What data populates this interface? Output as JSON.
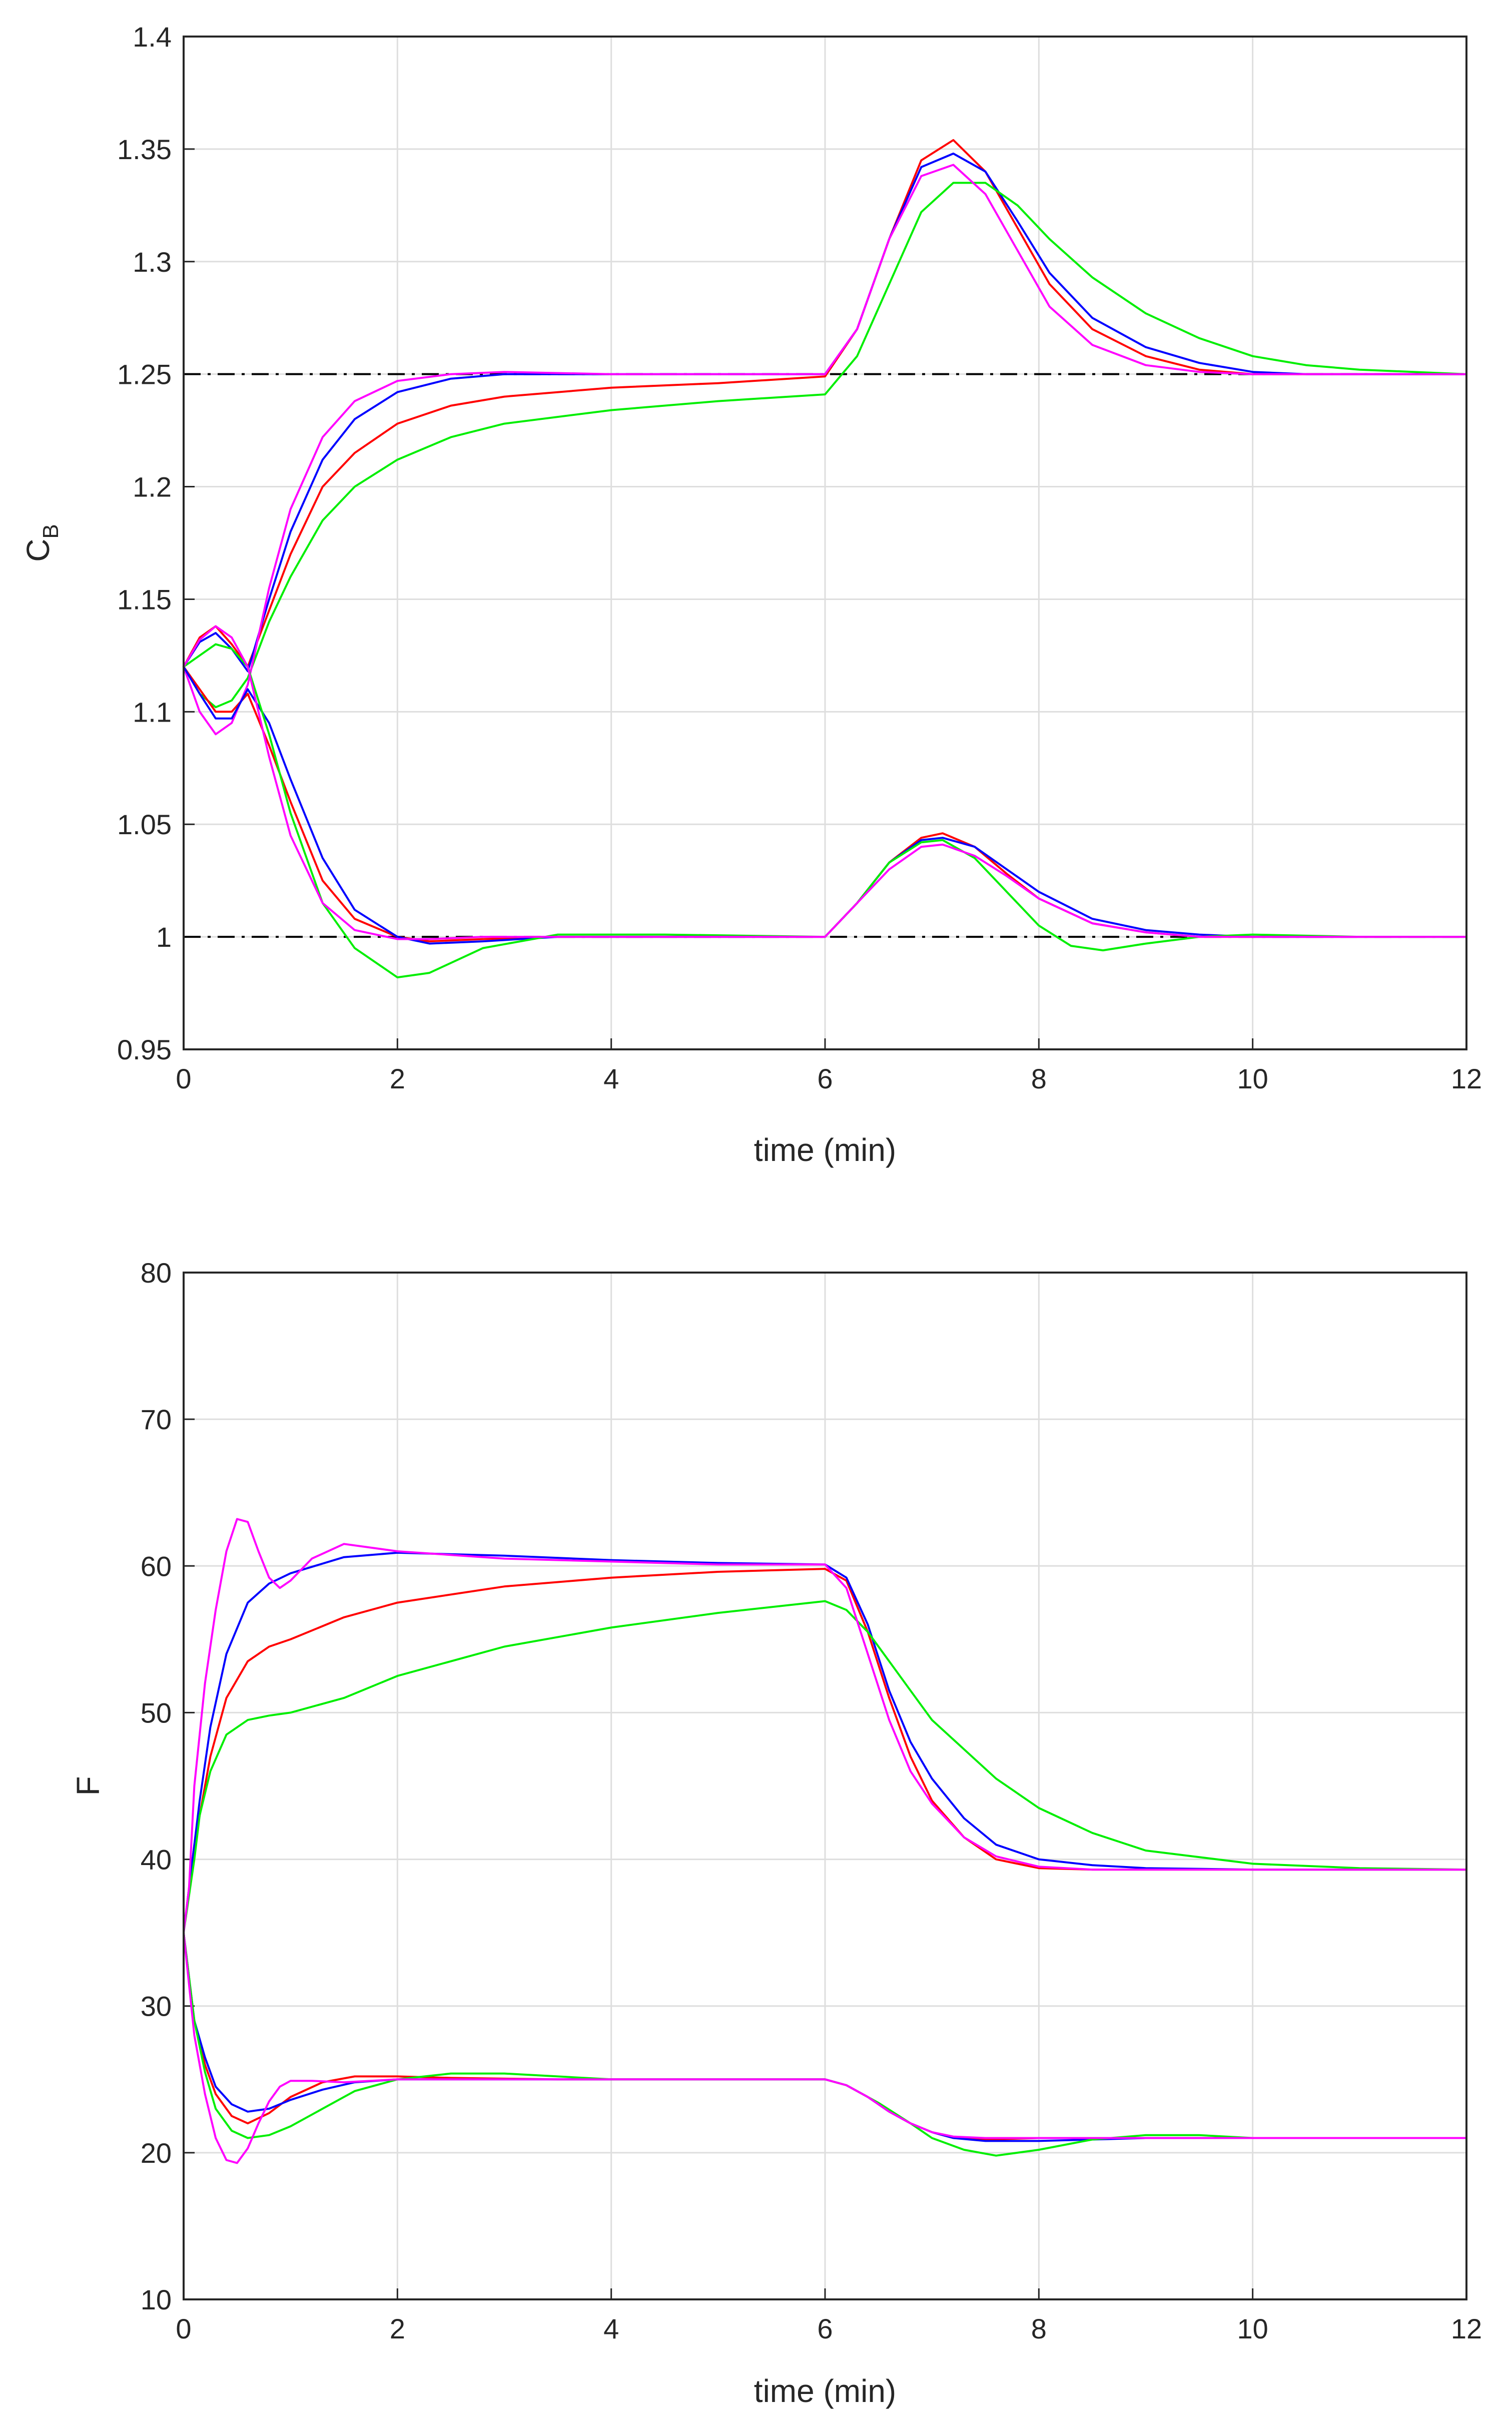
{
  "chart_data": [
    {
      "type": "line",
      "xlabel": "time (min)",
      "ylabel": "C",
      "ylabel_subscript": "B",
      "xlim": [
        0,
        12
      ],
      "ylim": [
        0.95,
        1.4
      ],
      "xticks": [
        0,
        2,
        4,
        6,
        8,
        10,
        12
      ],
      "yticks": [
        0.95,
        1,
        1.05,
        1.1,
        1.15,
        1.2,
        1.25,
        1.3,
        1.35,
        1.4
      ],
      "ytick_labels": [
        "0.95",
        "1",
        "1.05",
        "1.1",
        "1.15",
        "1.2",
        "1.25",
        "1.3",
        "1.35",
        "1.4"
      ],
      "grid": true,
      "references": [
        {
          "name": "setpoint-high",
          "y": 1.25,
          "style": "dash-dot",
          "color": "#000000"
        },
        {
          "name": "setpoint-low",
          "y": 1.0,
          "style": "dash-dot",
          "color": "#000000"
        }
      ],
      "series": [
        {
          "name": "red-upper",
          "color": "#ff0000",
          "x": [
            0,
            0.15,
            0.3,
            0.45,
            0.6,
            0.8,
            1.0,
            1.3,
            1.6,
            2.0,
            2.5,
            3.0,
            4.0,
            5.0,
            6.0,
            6.3,
            6.6,
            6.9,
            7.2,
            7.5,
            7.8,
            8.1,
            8.5,
            9.0,
            9.5,
            10.0,
            10.5,
            11.0,
            12.0
          ],
          "y": [
            1.12,
            1.133,
            1.138,
            1.13,
            1.12,
            1.145,
            1.17,
            1.2,
            1.215,
            1.228,
            1.236,
            1.24,
            1.244,
            1.246,
            1.249,
            1.27,
            1.31,
            1.345,
            1.354,
            1.34,
            1.315,
            1.29,
            1.27,
            1.258,
            1.252,
            1.25,
            1.25,
            1.25,
            1.25
          ]
        },
        {
          "name": "blue-upper",
          "color": "#0000ff",
          "x": [
            0,
            0.15,
            0.3,
            0.45,
            0.6,
            0.8,
            1.0,
            1.3,
            1.6,
            2.0,
            2.5,
            3.0,
            4.0,
            5.0,
            6.0,
            6.3,
            6.6,
            6.9,
            7.2,
            7.5,
            7.8,
            8.1,
            8.5,
            9.0,
            9.5,
            10.0,
            10.5,
            11.0,
            12.0
          ],
          "y": [
            1.12,
            1.131,
            1.135,
            1.128,
            1.118,
            1.15,
            1.18,
            1.212,
            1.23,
            1.242,
            1.248,
            1.25,
            1.25,
            1.25,
            1.25,
            1.27,
            1.31,
            1.342,
            1.348,
            1.34,
            1.318,
            1.295,
            1.275,
            1.262,
            1.255,
            1.251,
            1.25,
            1.25,
            1.25
          ]
        },
        {
          "name": "green-upper",
          "color": "#00ee00",
          "x": [
            0,
            0.15,
            0.3,
            0.45,
            0.6,
            0.8,
            1.0,
            1.3,
            1.6,
            2.0,
            2.5,
            3.0,
            4.0,
            5.0,
            6.0,
            6.3,
            6.6,
            6.9,
            7.2,
            7.5,
            7.8,
            8.1,
            8.5,
            9.0,
            9.5,
            10.0,
            10.5,
            11.0,
            12.0
          ],
          "y": [
            1.12,
            1.108,
            1.102,
            1.105,
            1.115,
            1.14,
            1.16,
            1.185,
            1.2,
            1.212,
            1.222,
            1.228,
            1.234,
            1.238,
            1.241,
            1.258,
            1.29,
            1.322,
            1.335,
            1.335,
            1.325,
            1.31,
            1.293,
            1.277,
            1.266,
            1.258,
            1.254,
            1.252,
            1.25
          ]
        },
        {
          "name": "magenta-upper",
          "color": "#ff00ff",
          "x": [
            0,
            0.15,
            0.3,
            0.45,
            0.6,
            0.8,
            1.0,
            1.3,
            1.6,
            2.0,
            2.5,
            3.0,
            4.0,
            5.0,
            6.0,
            6.3,
            6.6,
            6.9,
            7.2,
            7.5,
            7.8,
            8.1,
            8.5,
            9.0,
            9.5,
            10.0,
            10.5,
            11.0,
            12.0
          ],
          "y": [
            1.12,
            1.1,
            1.09,
            1.095,
            1.112,
            1.155,
            1.19,
            1.222,
            1.238,
            1.247,
            1.25,
            1.251,
            1.25,
            1.25,
            1.25,
            1.27,
            1.31,
            1.338,
            1.343,
            1.33,
            1.305,
            1.28,
            1.263,
            1.254,
            1.251,
            1.25,
            1.25,
            1.25,
            1.25
          ]
        },
        {
          "name": "red-lower",
          "color": "#ff0000",
          "x": [
            0,
            0.15,
            0.3,
            0.45,
            0.6,
            0.8,
            1.0,
            1.3,
            1.6,
            2.0,
            2.3,
            2.8,
            3.5,
            4.5,
            6.0,
            6.3,
            6.6,
            6.9,
            7.1,
            7.4,
            7.7,
            8.0,
            8.5,
            9.0,
            9.5,
            10.0,
            11.0,
            12.0
          ],
          "y": [
            1.12,
            1.11,
            1.1,
            1.1,
            1.108,
            1.085,
            1.06,
            1.025,
            1.008,
            1.0,
            0.998,
            0.999,
            1.0,
            1.0,
            1.0,
            1.015,
            1.033,
            1.044,
            1.046,
            1.04,
            1.028,
            1.017,
            1.006,
            1.002,
            1.0,
            1.0,
            1.0,
            1.0
          ]
        },
        {
          "name": "blue-lower",
          "color": "#0000ff",
          "x": [
            0,
            0.15,
            0.3,
            0.45,
            0.6,
            0.8,
            1.0,
            1.3,
            1.6,
            2.0,
            2.3,
            2.8,
            3.5,
            4.5,
            6.0,
            6.3,
            6.6,
            6.9,
            7.1,
            7.4,
            7.7,
            8.0,
            8.5,
            9.0,
            9.5,
            10.0,
            11.0,
            12.0
          ],
          "y": [
            1.12,
            1.108,
            1.097,
            1.097,
            1.11,
            1.095,
            1.07,
            1.035,
            1.012,
            1.0,
            0.997,
            0.998,
            1.0,
            1.0,
            1.0,
            1.015,
            1.033,
            1.043,
            1.044,
            1.04,
            1.03,
            1.02,
            1.008,
            1.003,
            1.001,
            1.0,
            1.0,
            1.0
          ]
        },
        {
          "name": "green-lower",
          "color": "#00ee00",
          "x": [
            0,
            0.15,
            0.3,
            0.45,
            0.6,
            0.8,
            1.0,
            1.3,
            1.6,
            2.0,
            2.3,
            2.8,
            3.5,
            4.5,
            6.0,
            6.3,
            6.6,
            6.9,
            7.1,
            7.4,
            7.7,
            8.0,
            8.3,
            8.6,
            9.0,
            9.5,
            10.0,
            11.0,
            12.0
          ],
          "y": [
            1.12,
            1.125,
            1.13,
            1.128,
            1.12,
            1.09,
            1.055,
            1.015,
            0.995,
            0.982,
            0.984,
            0.995,
            1.001,
            1.001,
            1.0,
            1.015,
            1.033,
            1.042,
            1.043,
            1.035,
            1.02,
            1.005,
            0.996,
            0.994,
            0.997,
            1.0,
            1.001,
            1.0,
            1.0
          ]
        },
        {
          "name": "magenta-lower",
          "color": "#ff00ff",
          "x": [
            0,
            0.15,
            0.3,
            0.45,
            0.6,
            0.8,
            1.0,
            1.3,
            1.6,
            2.0,
            2.3,
            2.8,
            3.5,
            4.5,
            6.0,
            6.3,
            6.6,
            6.9,
            7.1,
            7.4,
            7.7,
            8.0,
            8.5,
            9.0,
            9.5,
            10.0,
            11.0,
            12.0
          ],
          "y": [
            1.12,
            1.132,
            1.138,
            1.133,
            1.12,
            1.08,
            1.045,
            1.015,
            1.003,
            0.999,
            0.999,
            1.0,
            1.0,
            1.0,
            1.0,
            1.015,
            1.03,
            1.04,
            1.041,
            1.036,
            1.027,
            1.017,
            1.006,
            1.002,
            1.0,
            1.0,
            1.0,
            1.0
          ]
        }
      ]
    },
    {
      "type": "line",
      "xlabel": "time (min)",
      "ylabel": "F",
      "xlim": [
        0,
        12
      ],
      "ylim": [
        10,
        80
      ],
      "xticks": [
        0,
        2,
        4,
        6,
        8,
        10,
        12
      ],
      "yticks": [
        10,
        20,
        30,
        40,
        50,
        60,
        70,
        80
      ],
      "ytick_labels": [
        "10",
        "20",
        "30",
        "40",
        "50",
        "60",
        "70",
        "80"
      ],
      "grid": true,
      "series": [
        {
          "name": "red-upper",
          "color": "#ff0000",
          "x": [
            0,
            0.1,
            0.15,
            0.25,
            0.4,
            0.6,
            0.8,
            1.0,
            1.5,
            2.0,
            3.0,
            4.0,
            5.0,
            6.0,
            6.2,
            6.4,
            6.6,
            6.8,
            7.0,
            7.3,
            7.6,
            8.0,
            8.5,
            9.0,
            10.0,
            11.0,
            12.0
          ],
          "y": [
            35,
            41,
            43,
            47,
            51,
            53.5,
            54.5,
            55,
            56.5,
            57.5,
            58.6,
            59.2,
            59.6,
            59.8,
            59,
            55.5,
            51,
            47,
            44,
            41.5,
            40,
            39.4,
            39.3,
            39.3,
            39.3,
            39.3,
            39.3
          ]
        },
        {
          "name": "blue-upper",
          "color": "#0000ff",
          "x": [
            0,
            0.1,
            0.15,
            0.25,
            0.4,
            0.6,
            0.8,
            1.0,
            1.5,
            2.0,
            3.0,
            4.0,
            5.0,
            6.0,
            6.2,
            6.4,
            6.6,
            6.8,
            7.0,
            7.3,
            7.6,
            8.0,
            8.5,
            9.0,
            10.0,
            11.0,
            12.0
          ],
          "y": [
            35,
            41,
            44,
            49,
            54,
            57.5,
            58.8,
            59.5,
            60.6,
            60.9,
            60.7,
            60.4,
            60.2,
            60.1,
            59.2,
            56,
            51.5,
            48,
            45.5,
            42.8,
            41,
            40,
            39.6,
            39.4,
            39.3,
            39.3,
            39.3
          ]
        },
        {
          "name": "green-upper",
          "color": "#00ee00",
          "x": [
            0,
            0.1,
            0.15,
            0.25,
            0.4,
            0.6,
            0.8,
            1.0,
            1.5,
            2.0,
            3.0,
            4.0,
            5.0,
            6.0,
            6.2,
            6.4,
            6.6,
            6.8,
            7.0,
            7.3,
            7.6,
            8.0,
            8.5,
            9.0,
            10.0,
            11.0,
            12.0
          ],
          "y": [
            35,
            40,
            43,
            46,
            48.5,
            49.5,
            49.8,
            50,
            51,
            52.5,
            54.5,
            55.8,
            56.8,
            57.6,
            57,
            55.5,
            53.5,
            51.5,
            49.5,
            47.5,
            45.5,
            43.5,
            41.8,
            40.6,
            39.7,
            39.4,
            39.3
          ]
        },
        {
          "name": "magenta-upper",
          "color": "#ff00ff",
          "x": [
            0,
            0.05,
            0.1,
            0.2,
            0.3,
            0.4,
            0.5,
            0.6,
            0.7,
            0.8,
            0.9,
            1.0,
            1.2,
            1.5,
            2.0,
            3.0,
            4.0,
            5.0,
            6.0,
            6.2,
            6.4,
            6.6,
            6.8,
            7.0,
            7.3,
            7.6,
            8.0,
            8.5,
            9.0,
            10.0,
            12.0
          ],
          "y": [
            35,
            38,
            45,
            52,
            57,
            61,
            63.2,
            63,
            61,
            59.2,
            58.5,
            59,
            60.5,
            61.5,
            61,
            60.5,
            60.3,
            60.1,
            60.1,
            58.5,
            54,
            49.5,
            46,
            43.8,
            41.5,
            40.2,
            39.5,
            39.3,
            39.3,
            39.3,
            39.3
          ]
        },
        {
          "name": "red-lower",
          "color": "#ff0000",
          "x": [
            0,
            0.1,
            0.2,
            0.3,
            0.45,
            0.6,
            0.8,
            1.0,
            1.3,
            1.6,
            2.0,
            2.5,
            3.5,
            6.0,
            6.2,
            6.4,
            6.6,
            6.8,
            7.0,
            7.2,
            7.5,
            8.0,
            8.5,
            9.0,
            10.0,
            12.0
          ],
          "y": [
            35,
            29,
            26,
            24,
            22.5,
            22,
            22.7,
            23.8,
            24.8,
            25.2,
            25.2,
            25.1,
            25,
            25,
            24.6,
            23.8,
            22.8,
            22,
            21.4,
            21,
            20.9,
            21,
            21,
            21,
            21,
            21
          ]
        },
        {
          "name": "blue-lower",
          "color": "#0000ff",
          "x": [
            0,
            0.1,
            0.2,
            0.3,
            0.45,
            0.6,
            0.8,
            1.0,
            1.3,
            1.6,
            2.0,
            2.5,
            3.5,
            6.0,
            6.2,
            6.4,
            6.6,
            6.8,
            7.0,
            7.2,
            7.5,
            8.0,
            8.5,
            9.0,
            10.0,
            12.0
          ],
          "y": [
            35,
            29,
            26.5,
            24.5,
            23.3,
            22.8,
            23,
            23.6,
            24.3,
            24.8,
            25,
            25,
            25,
            25,
            24.6,
            23.8,
            22.8,
            22,
            21.4,
            21,
            20.8,
            20.8,
            20.9,
            21,
            21,
            21
          ]
        },
        {
          "name": "green-lower",
          "color": "#00ee00",
          "x": [
            0,
            0.1,
            0.2,
            0.3,
            0.45,
            0.6,
            0.8,
            1.0,
            1.3,
            1.6,
            2.0,
            2.5,
            3.0,
            3.5,
            4.0,
            6.0,
            6.2,
            6.5,
            6.8,
            7.0,
            7.3,
            7.6,
            8.0,
            8.5,
            9.0,
            9.5,
            10.0,
            12.0
          ],
          "y": [
            35,
            29,
            25.5,
            23,
            21.5,
            21,
            21.2,
            21.8,
            23,
            24.2,
            25,
            25.4,
            25.4,
            25.2,
            25,
            25,
            24.6,
            23.4,
            22,
            21,
            20.2,
            19.8,
            20.2,
            20.9,
            21.2,
            21.2,
            21,
            21
          ]
        },
        {
          "name": "magenta-lower",
          "color": "#ff00ff",
          "x": [
            0,
            0.1,
            0.2,
            0.3,
            0.4,
            0.5,
            0.6,
            0.7,
            0.8,
            0.9,
            1.0,
            1.2,
            1.5,
            2.0,
            3.0,
            6.0,
            6.2,
            6.4,
            6.6,
            6.8,
            7.0,
            7.2,
            7.5,
            8.0,
            9.0,
            12.0
          ],
          "y": [
            35,
            28,
            24,
            21,
            19.5,
            19.3,
            20.3,
            22,
            23.5,
            24.5,
            24.9,
            24.9,
            24.8,
            25,
            25,
            25,
            24.6,
            23.8,
            22.8,
            22,
            21.4,
            21.1,
            21,
            21,
            21,
            21
          ]
        }
      ]
    }
  ]
}
